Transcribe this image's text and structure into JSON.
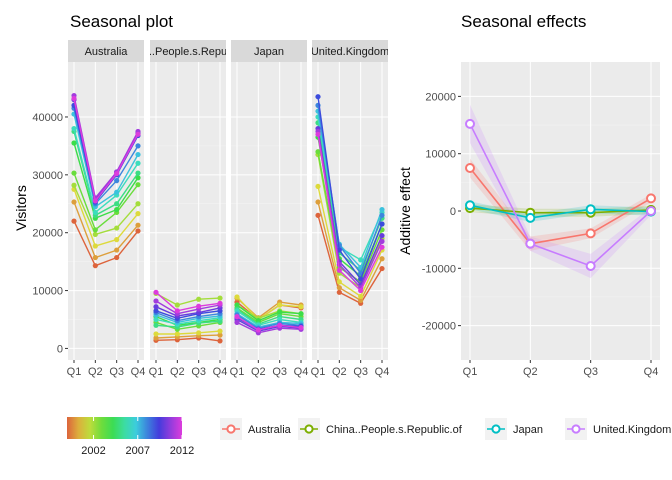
{
  "chart_data": [
    {
      "type": "line",
      "title": "Seasonal plot",
      "ylabel": "Visitors",
      "xlabel": "",
      "ylim": [
        -2000,
        49500
      ],
      "y_ticks": [
        0,
        10000,
        20000,
        30000,
        40000
      ],
      "y_tick_labels": [
        "0",
        "10000",
        "20000",
        "30000",
        "40000"
      ],
      "x_tick_labels": [
        "Q1",
        "Q2",
        "Q3",
        "Q4"
      ],
      "grid": true,
      "facets": [
        {
          "strip_label": "Australia",
          "series": [
            {
              "year": 1999,
              "values": [
                22000,
                14300,
                15700,
                20300
              ]
            },
            {
              "year": 2000,
              "values": [
                25300,
                15700,
                17000,
                21300
              ]
            },
            {
              "year": 2001,
              "values": [
                27500,
                17700,
                18800,
                23300
              ]
            },
            {
              "year": 2002,
              "values": [
                28200,
                19700,
                20800,
                25000
              ]
            },
            {
              "year": 2003,
              "values": [
                30300,
                20500,
                23500,
                28300
              ]
            },
            {
              "year": 2004,
              "values": [
                35500,
                22500,
                24000,
                29500
              ]
            },
            {
              "year": 2005,
              "values": [
                37500,
                23000,
                25000,
                30300
              ]
            },
            {
              "year": 2006,
              "values": [
                38000,
                23500,
                26500,
                32000
              ]
            },
            {
              "year": 2007,
              "values": [
                40500,
                24500,
                27000,
                33500
              ]
            },
            {
              "year": 2008,
              "values": [
                41500,
                25000,
                29000,
                35000
              ]
            },
            {
              "year": 2009,
              "values": [
                42000,
                25300,
                30000,
                36800
              ]
            },
            {
              "year": 2010,
              "values": [
                43000,
                25700,
                30500,
                37200
              ]
            },
            {
              "year": 2011,
              "values": [
                43700,
                26000,
                30500,
                37500
              ]
            },
            {
              "year": 2012,
              "values": [
                43200,
                25500,
                30200,
                37000
              ]
            }
          ]
        },
        {
          "strip_label": "China..People.s.Republic.of",
          "series": [
            {
              "year": 1999,
              "values": [
                1400,
                1500,
                1800,
                1300
              ]
            },
            {
              "year": 2000,
              "values": [
                1800,
                2000,
                2200,
                2300
              ]
            },
            {
              "year": 2001,
              "values": [
                2500,
                2500,
                2700,
                3000
              ]
            },
            {
              "year": 2002,
              "values": [
                9500,
                7500,
                8500,
                8700
              ]
            },
            {
              "year": 2003,
              "values": [
                4500,
                3300,
                3900,
                4500
              ]
            },
            {
              "year": 2004,
              "values": [
                5500,
                4000,
                4500,
                5000
              ]
            },
            {
              "year": 2005,
              "values": [
                4000,
                3700,
                4400,
                4700
              ]
            },
            {
              "year": 2006,
              "values": [
                5000,
                4200,
                4800,
                5300
              ]
            },
            {
              "year": 2007,
              "values": [
                5800,
                4500,
                5200,
                5600
              ]
            },
            {
              "year": 2008,
              "values": [
                6200,
                4800,
                5500,
                6000
              ]
            },
            {
              "year": 2009,
              "values": [
                6500,
                5200,
                6000,
                6500
              ]
            },
            {
              "year": 2010,
              "values": [
                7200,
                5600,
                6200,
                7000
              ]
            },
            {
              "year": 2011,
              "values": [
                8200,
                6000,
                6800,
                7500
              ]
            },
            {
              "year": 2012,
              "values": [
                9700,
                6500,
                7300,
                7800
              ]
            }
          ]
        },
        {
          "strip_label": "Japan",
          "series": [
            {
              "year": 1999,
              "values": [
                8000,
                5000,
                7500,
                7000
              ]
            },
            {
              "year": 2000,
              "values": [
                8700,
                5300,
                8000,
                7500
              ]
            },
            {
              "year": 2001,
              "values": [
                8900,
                5000,
                7500,
                7200
              ]
            },
            {
              "year": 2002,
              "values": [
                7500,
                5200,
                6500,
                6000
              ]
            },
            {
              "year": 2003,
              "values": [
                7000,
                4500,
                6000,
                5500
              ]
            },
            {
              "year": 2004,
              "values": [
                7500,
                4800,
                6300,
                6000
              ]
            },
            {
              "year": 2005,
              "values": [
                6800,
                4200,
                5500,
                5000
              ]
            },
            {
              "year": 2006,
              "values": [
                6500,
                4000,
                5000,
                4500
              ]
            },
            {
              "year": 2007,
              "values": [
                6000,
                3700,
                4500,
                4300
              ]
            },
            {
              "year": 2008,
              "values": [
                5800,
                3500,
                4300,
                4000
              ]
            },
            {
              "year": 2009,
              "values": [
                5300,
                3300,
                4000,
                3800
              ]
            },
            {
              "year": 2010,
              "values": [
                5000,
                3000,
                3800,
                3500
              ]
            },
            {
              "year": 2011,
              "values": [
                4500,
                2700,
                3500,
                3300
              ]
            },
            {
              "year": 2012,
              "values": [
                5500,
                3200,
                4000,
                3600
              ]
            }
          ]
        },
        {
          "strip_label": "United.Kingdom",
          "series": [
            {
              "year": 1999,
              "values": [
                23000,
                9700,
                7800,
                13800
              ]
            },
            {
              "year": 2000,
              "values": [
                25300,
                10500,
                8300,
                15500
              ]
            },
            {
              "year": 2001,
              "values": [
                28000,
                11500,
                9000,
                17000
              ]
            },
            {
              "year": 2002,
              "values": [
                33500,
                13000,
                10500,
                19000
              ]
            },
            {
              "year": 2003,
              "values": [
                34000,
                14000,
                11500,
                20500
              ]
            },
            {
              "year": 2004,
              "values": [
                36500,
                15500,
                12500,
                21500
              ]
            },
            {
              "year": 2005,
              "values": [
                39000,
                16500,
                13500,
                22500
              ]
            },
            {
              "year": 2006,
              "values": [
                40000,
                17500,
                15300,
                23500
              ]
            },
            {
              "year": 2007,
              "values": [
                41000,
                18000,
                14000,
                24000
              ]
            },
            {
              "year": 2008,
              "values": [
                42000,
                17800,
                13000,
                23000
              ]
            },
            {
              "year": 2009,
              "values": [
                43500,
                17000,
                12000,
                21500
              ]
            },
            {
              "year": 2010,
              "values": [
                38000,
                15000,
                11000,
                19500
              ]
            },
            {
              "year": 2011,
              "values": [
                37500,
                14500,
                10500,
                18500
              ]
            },
            {
              "year": 2012,
              "values": [
                37000,
                13500,
                10000,
                17500
              ]
            }
          ]
        }
      ],
      "legend": {
        "type": "colorbar",
        "position": "bottom-left",
        "range": [
          1999,
          2012
        ],
        "tick_labels": [
          "2002",
          "2007",
          "2012"
        ],
        "tick_values": [
          2002,
          2007,
          2012
        ]
      }
    },
    {
      "type": "line",
      "title": "Seasonal effects",
      "ylabel": "Additive effect",
      "xlabel": "",
      "ylim": [
        -26000,
        26000
      ],
      "y_ticks": [
        -20000,
        -10000,
        0,
        10000,
        20000
      ],
      "y_tick_labels": [
        "-20000",
        "-10000",
        "0",
        "10000",
        "20000"
      ],
      "categories": [
        "Q1",
        "Q2",
        "Q3",
        "Q4"
      ],
      "grid": true,
      "series": [
        {
          "name": "Australia",
          "color": "#F8766D",
          "values": [
            7500,
            -5700,
            -3900,
            2200
          ]
        },
        {
          "name": "China..People.s.Republic.of",
          "color": "#7CAE00",
          "values": [
            500,
            -300,
            -300,
            200
          ]
        },
        {
          "name": "Japan",
          "color": "#00BFC4",
          "values": [
            1000,
            -1200,
            300,
            -100
          ]
        },
        {
          "name": "United.Kingdom",
          "color": "#C77CFF",
          "values": [
            15200,
            -5700,
            -9600,
            0
          ]
        }
      ],
      "legend_position": "bottom"
    }
  ]
}
